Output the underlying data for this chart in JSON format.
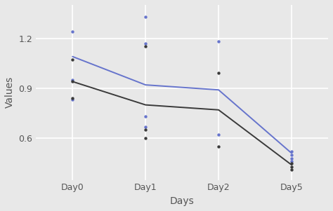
{
  "categories": [
    "Day0",
    "Day1",
    "Day2",
    "Day5"
  ],
  "blue_line": [
    1.09,
    0.92,
    0.89,
    0.51
  ],
  "dark_line": [
    0.94,
    0.8,
    0.77,
    0.44
  ],
  "blue_dots": {
    "Day0": [
      1.24,
      0.95,
      0.83
    ],
    "Day1": [
      1.33,
      1.17,
      0.73,
      0.67
    ],
    "Day2": [
      1.18,
      0.62
    ],
    "Day5": [
      0.52,
      0.5,
      0.48,
      0.46
    ]
  },
  "dark_dots": {
    "Day0": [
      1.07,
      0.94,
      0.84
    ],
    "Day1": [
      1.15,
      0.65,
      0.6
    ],
    "Day2": [
      0.99,
      0.55
    ],
    "Day5": [
      0.45,
      0.43,
      0.41
    ]
  },
  "xlabel": "Days",
  "ylabel": "Values",
  "yticks": [
    0.6,
    0.9,
    1.2
  ],
  "ylim_min": 0.35,
  "ylim_max": 1.4,
  "background_color": "#E8E8E8",
  "grid_color": "#FFFFFF",
  "blue_color": "#6674CC",
  "dark_color": "#3A3A3A",
  "tick_color": "#555555",
  "label_fontsize": 9,
  "axis_label_fontsize": 10
}
